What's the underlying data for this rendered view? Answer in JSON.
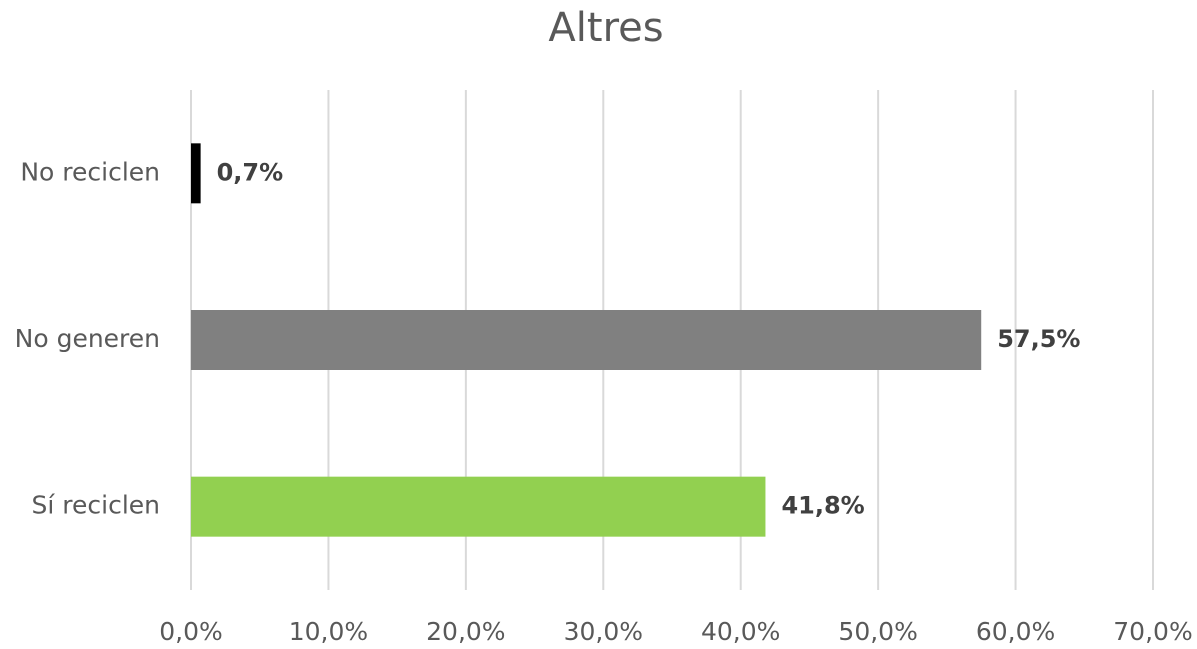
{
  "chart_data": {
    "type": "hbar",
    "title": "Altres",
    "categories": [
      "No reciclen",
      "No generen",
      "Sí reciclen"
    ],
    "values": [
      0.7,
      57.5,
      41.8
    ],
    "value_labels": [
      "0,7%",
      "57,5%",
      "41,8%"
    ],
    "colors": [
      "#000000",
      "#808080",
      "#92d050"
    ],
    "xlim": [
      0,
      70
    ],
    "xticks": [
      {
        "value": 0,
        "label": "0,0%"
      },
      {
        "value": 10,
        "label": "10,0%"
      },
      {
        "value": 20,
        "label": "20,0%"
      },
      {
        "value": 30,
        "label": "30,0%"
      },
      {
        "value": 40,
        "label": "40,0%"
      },
      {
        "value": 50,
        "label": "50,0%"
      },
      {
        "value": 60,
        "label": "60,0%"
      },
      {
        "value": 70,
        "label": "70,0%"
      }
    ],
    "grid": true
  }
}
